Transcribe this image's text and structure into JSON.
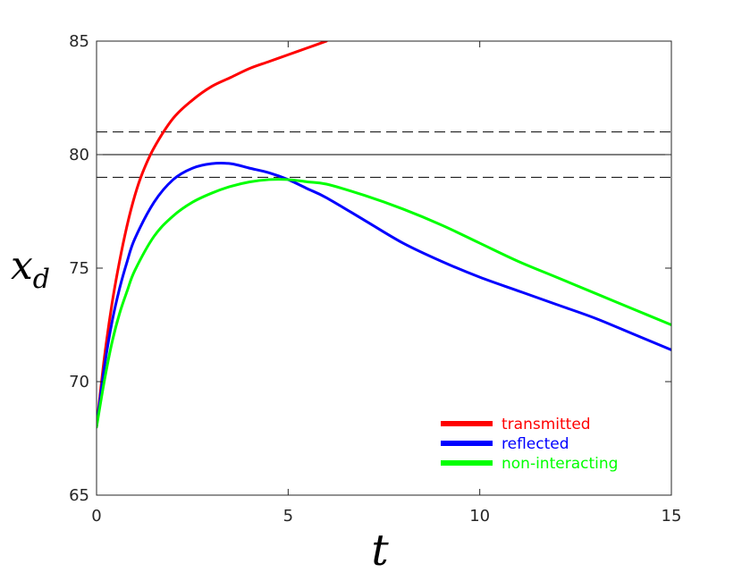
{
  "chart_data": {
    "type": "line",
    "xlabel": "t",
    "ylabel": "x_d",
    "xlim": [
      0,
      15
    ],
    "ylim": [
      65,
      85
    ],
    "x_ticks": [
      0,
      5,
      10,
      15
    ],
    "y_ticks": [
      65,
      70,
      75,
      80,
      85
    ],
    "grid": false,
    "legend_position": "bottom-right",
    "reference_lines": [
      {
        "y": 80,
        "style": "solid",
        "color": "#000000"
      },
      {
        "y": 81,
        "style": "dashed",
        "color": "#000000"
      },
      {
        "y": 79,
        "style": "dashed",
        "color": "#000000"
      }
    ],
    "series": [
      {
        "name": "transmitted",
        "color": "#ff0000",
        "x": [
          0,
          0.2,
          0.4,
          0.6,
          0.8,
          1.0,
          1.2,
          1.5,
          2.0,
          2.5,
          3.0,
          3.5,
          4.0,
          4.5,
          5.0,
          5.5,
          6.0
        ],
        "y": [
          68.0,
          71.0,
          73.4,
          75.3,
          76.9,
          78.2,
          79.2,
          80.3,
          81.6,
          82.4,
          83.0,
          83.4,
          83.8,
          84.1,
          84.4,
          84.7,
          85.0
        ]
      },
      {
        "name": "reflected",
        "color": "#0000ff",
        "x": [
          0,
          0.2,
          0.4,
          0.6,
          0.8,
          1.0,
          1.5,
          2.0,
          2.5,
          3.0,
          3.5,
          4.0,
          4.5,
          5.0,
          5.5,
          6.0,
          7.0,
          8.0,
          9.0,
          10.0,
          11.0,
          12.0,
          13.0,
          14.0,
          15.0
        ],
        "y": [
          68.0,
          70.6,
          72.6,
          74.1,
          75.3,
          76.3,
          77.9,
          78.9,
          79.4,
          79.6,
          79.6,
          79.4,
          79.2,
          78.9,
          78.5,
          78.1,
          77.1,
          76.1,
          75.3,
          74.6,
          74.0,
          73.4,
          72.8,
          72.1,
          71.4
        ]
      },
      {
        "name": "non-interacting",
        "color": "#00ff00",
        "x": [
          0,
          0.2,
          0.4,
          0.6,
          0.8,
          1.0,
          1.5,
          2.0,
          2.5,
          3.0,
          3.5,
          4.0,
          4.5,
          5.0,
          5.5,
          6.0,
          7.0,
          8.0,
          9.0,
          10.0,
          11.0,
          12.0,
          13.0,
          14.0,
          15.0
        ],
        "y": [
          68.0,
          70.0,
          71.7,
          73.0,
          74.0,
          74.9,
          76.4,
          77.3,
          77.9,
          78.3,
          78.6,
          78.8,
          78.9,
          78.9,
          78.8,
          78.7,
          78.2,
          77.6,
          76.9,
          76.1,
          75.3,
          74.6,
          73.9,
          73.2,
          72.5
        ]
      }
    ]
  }
}
